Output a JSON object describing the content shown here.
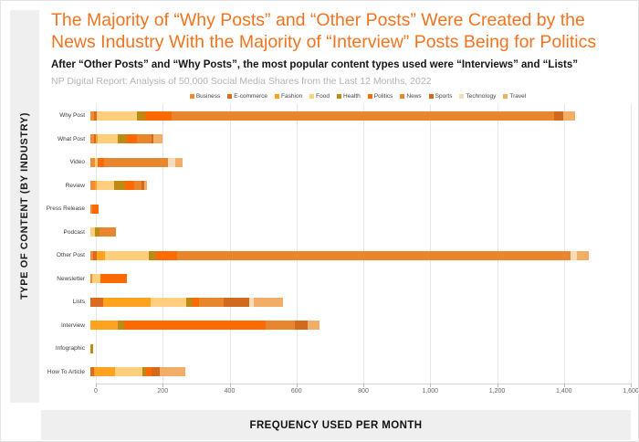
{
  "page": {
    "title": "The Majority of “Why Posts” and “Other Posts” Were Created by the News Industry With the Majority of “Interview” Posts Being for Politics",
    "title_color": "#F4731F",
    "subtitle": "After “Other Posts” and “Why Posts”, the most popular content types used were “Interviews” and “Lists”",
    "source": "NP Digital Report: Analysis of 50,000 Social Media Shares from the Last 12 Months, 2022",
    "y_axis_label": "TYPE OF CONTENT (BY INDUSTRY)",
    "x_axis_label": "FREQUENCY USED PER MONTH"
  },
  "chart_data": {
    "type": "bar",
    "orientation": "horizontal",
    "stacked": true,
    "grid": true,
    "legend_position": "top",
    "xlim": [
      0,
      1600
    ],
    "x_ticks": [
      "0",
      "200",
      "400",
      "600",
      "800",
      "1,000",
      "1,200",
      "1,400",
      "1,600"
    ],
    "categories": [
      "Why Post",
      "What Post",
      "Video",
      "Review",
      "Press Release",
      "Podcast",
      "Other Post",
      "Newsletter",
      "Lists",
      "Interview",
      "Infographic",
      "How To Article"
    ],
    "totals": [
      1450,
      215,
      275,
      170,
      25,
      77,
      1492,
      110,
      575,
      685,
      8,
      284
    ],
    "series": [
      {
        "name": "Business",
        "color": "#F18B35",
        "values": [
          10,
          11,
          14,
          14,
          5,
          0,
          8,
          5,
          0,
          0,
          0,
          0
        ]
      },
      {
        "name": "E-commerce",
        "color": "#DB6B21",
        "values": [
          8,
          6,
          0,
          0,
          0,
          0,
          10,
          0,
          38,
          0,
          0,
          11
        ]
      },
      {
        "name": "Fashion",
        "color": "#FFA21E",
        "values": [
          0,
          5,
          0,
          5,
          0,
          0,
          27,
          0,
          142,
          82,
          0,
          63
        ]
      },
      {
        "name": "Food",
        "color": "#FFCF7E",
        "values": [
          120,
          60,
          8,
          52,
          0,
          15,
          130,
          25,
          106,
          0,
          0,
          82
        ]
      },
      {
        "name": "Health",
        "color": "#BF8A13",
        "values": [
          25,
          27,
          0,
          32,
          0,
          12,
          22,
          0,
          20,
          19,
          8,
          10
        ]
      },
      {
        "name": "Politics",
        "color": "#FF6A00",
        "values": [
          80,
          30,
          19,
          29,
          20,
          0,
          63,
          80,
          19,
          422,
          0,
          17
        ]
      },
      {
        "name": "News",
        "color": "#E8852D",
        "values": [
          1145,
          44,
          192,
          22,
          0,
          50,
          1175,
          0,
          74,
          90,
          0,
          0
        ]
      },
      {
        "name": "Sports",
        "color": "#D26A1E",
        "values": [
          27,
          6,
          0,
          8,
          0,
          0,
          0,
          0,
          76,
          36,
          0,
          25
        ]
      },
      {
        "name": "Technology",
        "color": "#F7DCB8",
        "values": [
          0,
          0,
          21,
          0,
          0,
          0,
          20,
          0,
          14,
          0,
          0,
          0
        ]
      },
      {
        "name": "Travel",
        "color": "#F2AE66",
        "values": [
          35,
          26,
          21,
          8,
          0,
          0,
          37,
          0,
          86,
          36,
          0,
          76
        ]
      }
    ]
  }
}
